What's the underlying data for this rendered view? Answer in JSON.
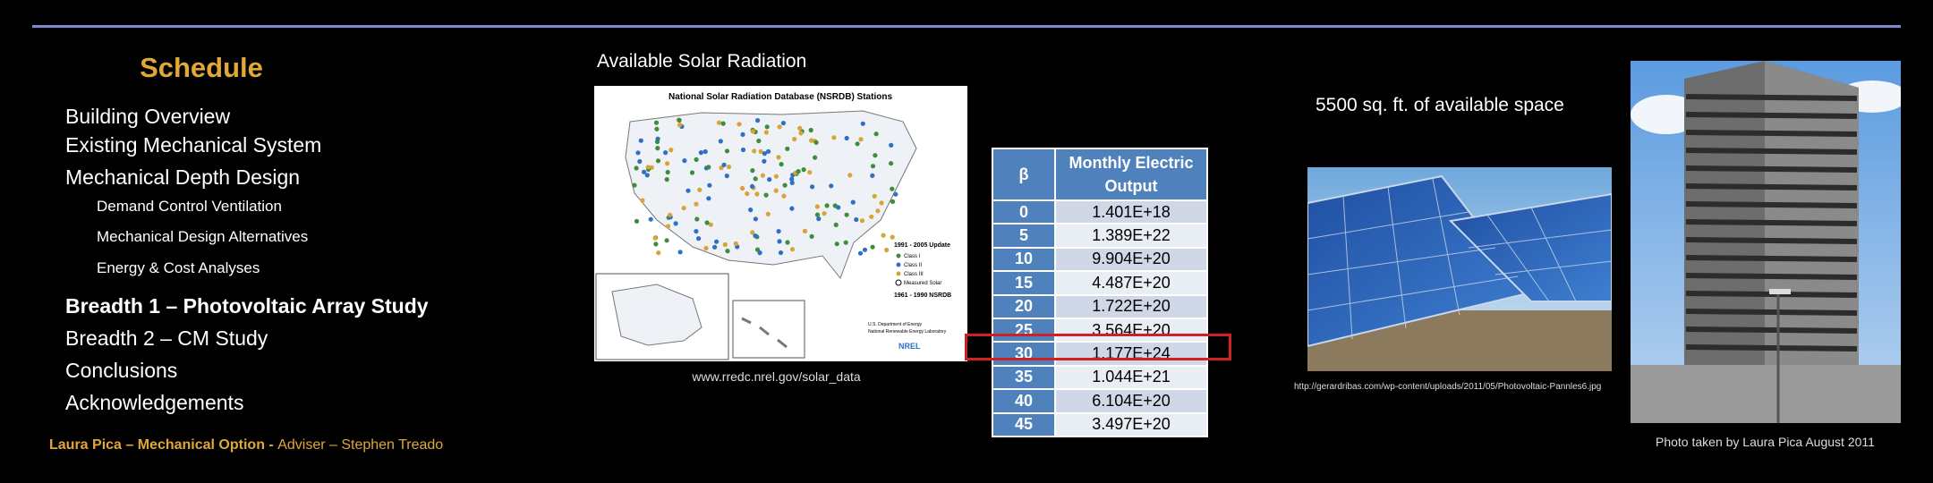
{
  "schedule": {
    "title": "Schedule",
    "items": [
      {
        "label": "Building Overview"
      },
      {
        "label": "Existing Mechanical System"
      },
      {
        "label": "Mechanical Depth Design"
      },
      {
        "label": "Demand Control Ventilation"
      },
      {
        "label": "Mechanical Design Alternatives"
      },
      {
        "label": "Energy & Cost Analyses"
      },
      {
        "label": "Breadth 1 – Photovoltaic Array Study"
      },
      {
        "label": "Breadth 2 – CM Study"
      },
      {
        "label": "Conclusions"
      },
      {
        "label": "Acknowledgements"
      }
    ]
  },
  "footer": {
    "name": "Laura Pica – Mechanical Option - ",
    "adviser": "Adviser – Stephen Treado"
  },
  "solar": {
    "title": "Available Solar Radiation",
    "map_title": "National Solar Radiation Database (NSRDB) Stations",
    "legend_update": "1991 - 2005 Update",
    "legend_class1": "Class I",
    "legend_class2": "Class II",
    "legend_class3": "Class III",
    "legend_measured": "Measured Solar",
    "legend_old": "1961 - 1990 NSRDB",
    "doe_line1": "U.S. Department of Energy",
    "doe_line2": "National Renewable Energy Laboratory",
    "nrel": "NREL",
    "caption": "www.rredc.nrel.gov/solar_data"
  },
  "table": {
    "col1": "β",
    "col2_line1": "Monthly Electric",
    "col2_line2": "Output",
    "rows": [
      {
        "beta": "0",
        "output": "1.401E+18"
      },
      {
        "beta": "5",
        "output": "1.389E+22"
      },
      {
        "beta": "10",
        "output": "9.904E+20"
      },
      {
        "beta": "15",
        "output": "4.487E+20"
      },
      {
        "beta": "20",
        "output": "1.722E+20"
      },
      {
        "beta": "25",
        "output": "3.564E+20"
      },
      {
        "beta": "30",
        "output": "1.177E+24"
      },
      {
        "beta": "35",
        "output": "1.044E+21"
      },
      {
        "beta": "40",
        "output": "6.104E+20"
      },
      {
        "beta": "45",
        "output": "3.497E+20"
      }
    ]
  },
  "space": {
    "title": "5500 sq. ft. of available space",
    "caption": "http://gerardribas.com/wp-content/uploads/2011/05/Photovoltaic-Pannles6.jpg"
  },
  "building": {
    "caption": "Photo taken by Laura Pica August 2011"
  },
  "colors": {
    "accent": "#e0a836",
    "table_header": "#4f81bd",
    "highlight": "#d21f1f",
    "rule": "#7f8ad6"
  }
}
